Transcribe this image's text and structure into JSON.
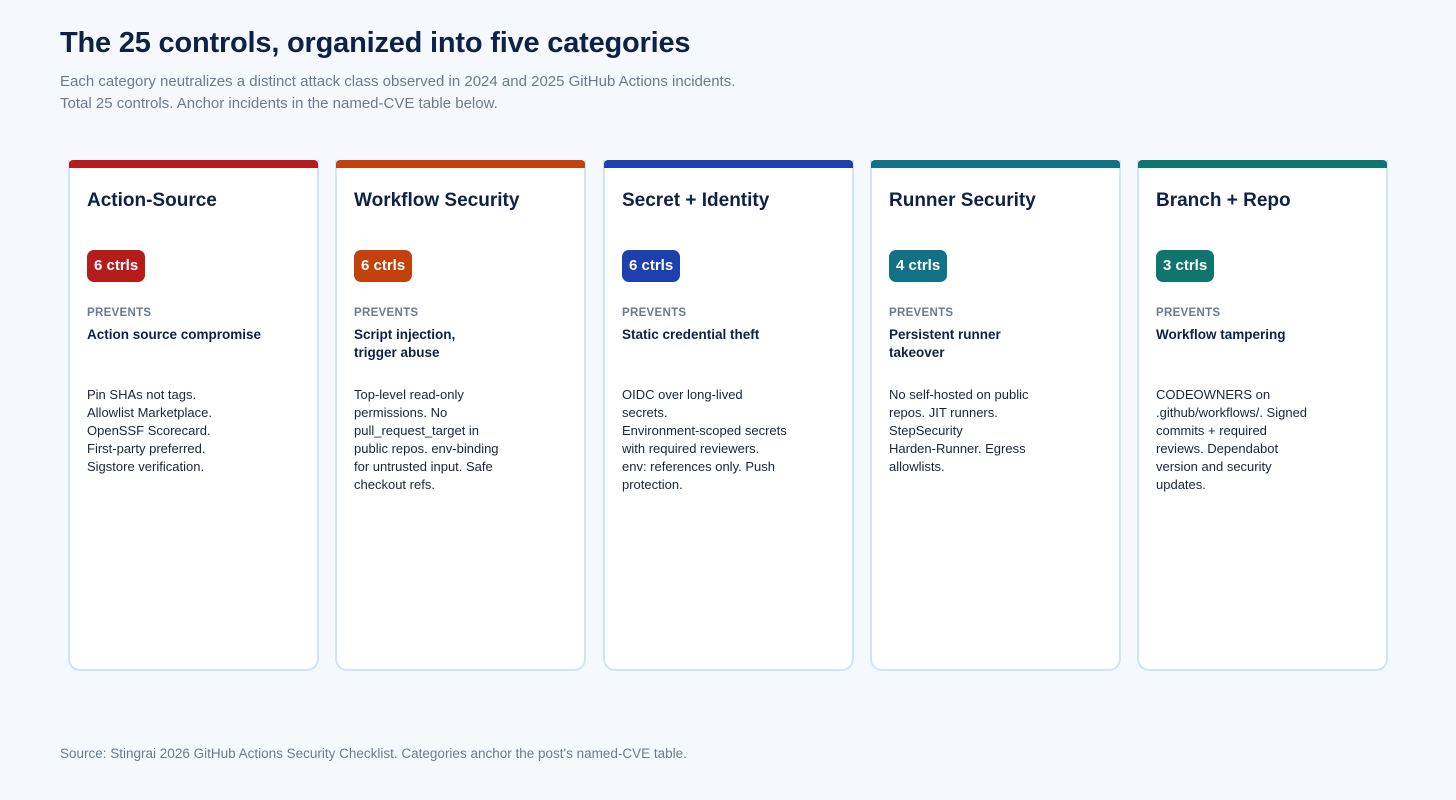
{
  "header": {
    "title": "The 25 controls, organized into five categories",
    "subtitle_lines": [
      "Each category neutralizes a distinct attack class observed in 2024 and 2025 GitHub Actions incidents.",
      "Total 25 controls. Anchor incidents in the named-CVE table below."
    ]
  },
  "prevents_label": "PREVENTS",
  "categories": [
    {
      "name": "Action-Source",
      "badge": "6 ctrls",
      "color": "#b71c1c",
      "prevents": [
        "Action source compromise"
      ],
      "controls": [
        "Pin SHAs not tags.",
        "Allowlist Marketplace.",
        "OpenSSF Scorecard.",
        "First-party preferred.",
        "Sigstore verification."
      ]
    },
    {
      "name": "Workflow Security",
      "badge": "6 ctrls",
      "color": "#c2410c",
      "prevents": [
        "Script injection,",
        "trigger abuse"
      ],
      "controls": [
        "Top-level read-only",
        "permissions. No",
        "pull_request_target in",
        "public repos. env-binding",
        "for untrusted input. Safe",
        "checkout refs."
      ]
    },
    {
      "name": "Secret + Identity",
      "badge": "6 ctrls",
      "color": "#1e3fae",
      "prevents": [
        "Static credential theft"
      ],
      "controls": [
        "OIDC over long-lived",
        "secrets.",
        "Environment-scoped secrets",
        "with required reviewers.",
        "env: references only. Push",
        "protection."
      ]
    },
    {
      "name": "Runner Security",
      "badge": "4 ctrls",
      "color": "#117185",
      "prevents": [
        "Persistent runner",
        "takeover"
      ],
      "controls": [
        "No self-hosted on public",
        "repos. JIT runners.",
        "StepSecurity",
        "Harden-Runner. Egress",
        "allowlists."
      ]
    },
    {
      "name": "Branch + Repo",
      "badge": "3 ctrls",
      "color": "#0f766e",
      "prevents": [
        "Workflow tampering"
      ],
      "controls": [
        "CODEOWNERS on",
        ".github/workflows/. Signed",
        "commits + required",
        "reviews. Dependabot",
        "version and security",
        "updates."
      ]
    }
  ],
  "footer": {
    "source": "Source: Stingrai 2026 GitHub Actions Security Checklist. Categories anchor the post's named-CVE table."
  }
}
